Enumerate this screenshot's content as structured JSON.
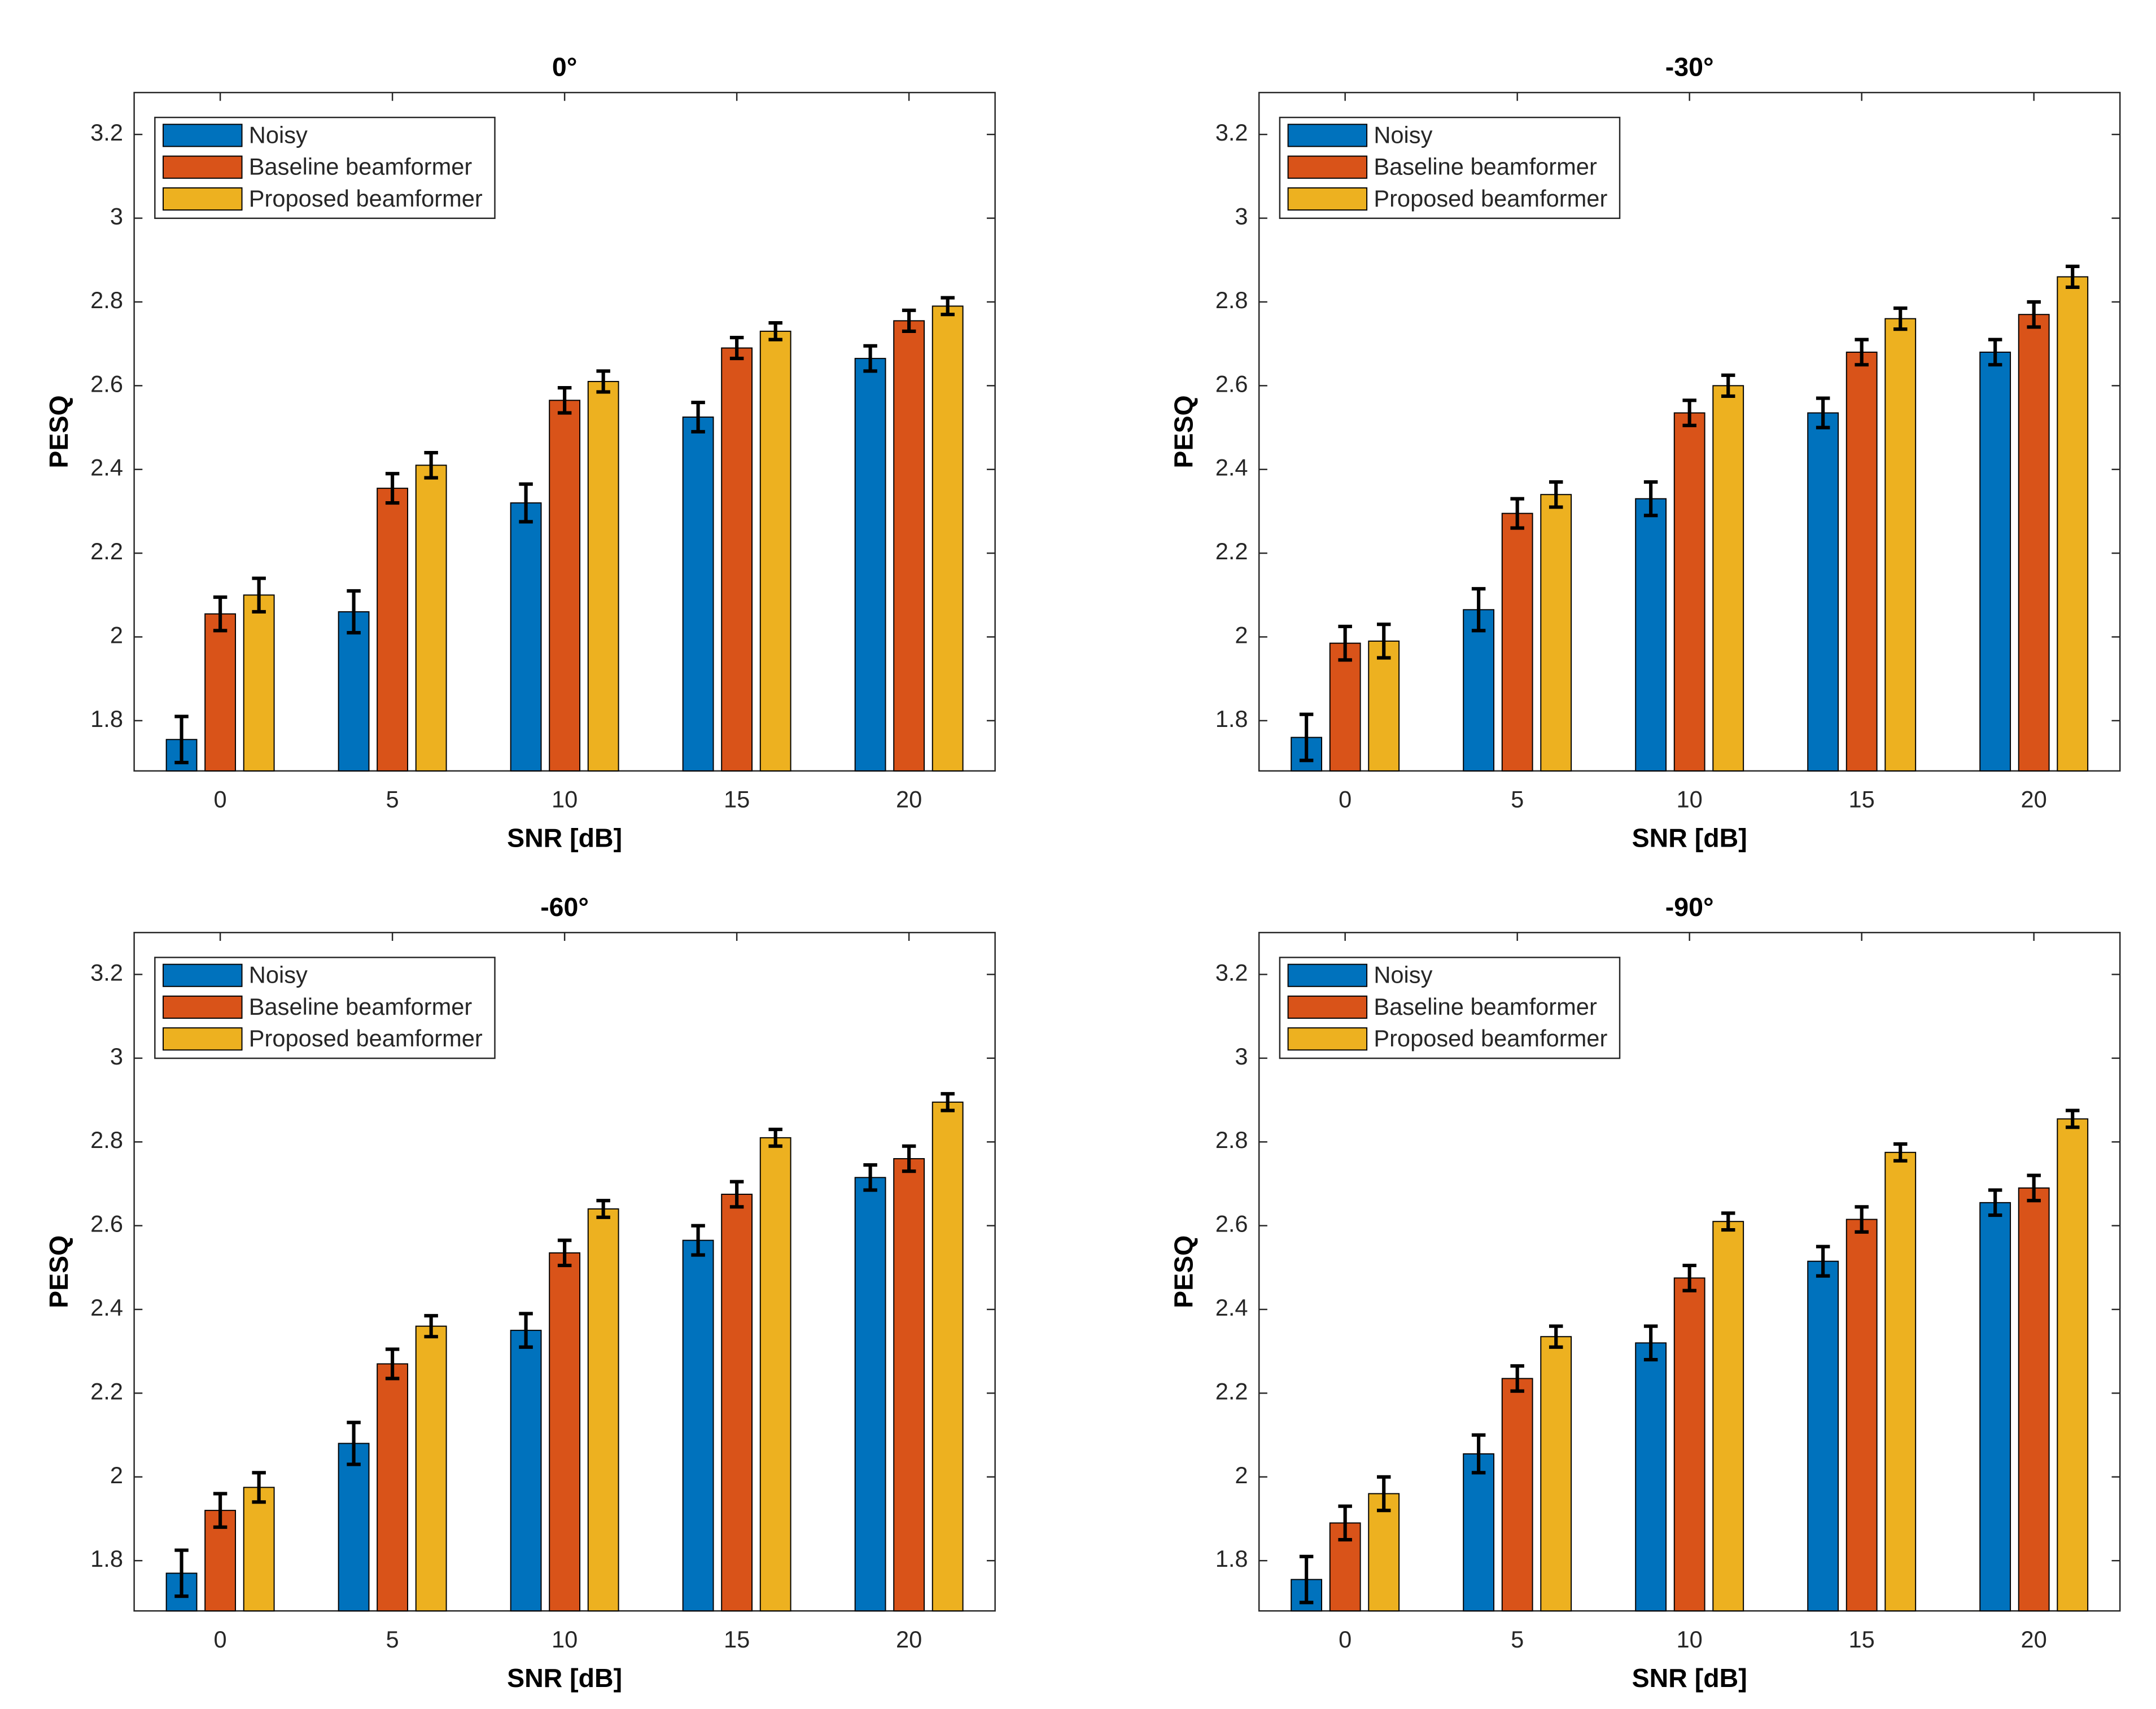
{
  "chart_data": [
    {
      "type": "bar",
      "title": "0°",
      "xlabel": "SNR [dB]",
      "ylabel": "PESQ",
      "legend": "upper left",
      "categories": [
        "0",
        "5",
        "10",
        "15",
        "20"
      ],
      "series": [
        {
          "name": "Noisy",
          "color": "#0072BD",
          "values": [
            1.755,
            2.06,
            2.32,
            2.525,
            2.665
          ],
          "errors": [
            0.055,
            0.05,
            0.045,
            0.035,
            0.03
          ]
        },
        {
          "name": "Baseline beamformer",
          "color": "#D95319",
          "values": [
            2.055,
            2.355,
            2.565,
            2.69,
            2.755
          ],
          "errors": [
            0.04,
            0.035,
            0.03,
            0.025,
            0.025
          ]
        },
        {
          "name": "Proposed beamformer",
          "color": "#EDB120",
          "values": [
            2.1,
            2.41,
            2.61,
            2.73,
            2.79
          ],
          "errors": [
            0.04,
            0.03,
            0.025,
            0.02,
            0.02
          ]
        }
      ],
      "ylim": [
        1.68,
        3.3
      ],
      "yticks": [
        1.8,
        2,
        2.2,
        2.4,
        2.6,
        2.8,
        3,
        3.2
      ]
    },
    {
      "type": "bar",
      "title": "-30°",
      "xlabel": "SNR [dB]",
      "ylabel": "PESQ",
      "legend": "upper left",
      "categories": [
        "0",
        "5",
        "10",
        "15",
        "20"
      ],
      "series": [
        {
          "name": "Noisy",
          "color": "#0072BD",
          "values": [
            1.76,
            2.065,
            2.33,
            2.535,
            2.68
          ],
          "errors": [
            0.055,
            0.05,
            0.04,
            0.035,
            0.03
          ]
        },
        {
          "name": "Baseline beamformer",
          "color": "#D95319",
          "values": [
            1.985,
            2.295,
            2.535,
            2.68,
            2.77
          ],
          "errors": [
            0.04,
            0.035,
            0.03,
            0.03,
            0.03
          ]
        },
        {
          "name": "Proposed beamformer",
          "color": "#EDB120",
          "values": [
            1.99,
            2.34,
            2.6,
            2.76,
            2.86
          ],
          "errors": [
            0.04,
            0.03,
            0.025,
            0.025,
            0.025
          ]
        }
      ],
      "ylim": [
        1.68,
        3.3
      ],
      "yticks": [
        1.8,
        2,
        2.2,
        2.4,
        2.6,
        2.8,
        3,
        3.2
      ]
    },
    {
      "type": "bar",
      "title": "-60°",
      "xlabel": "SNR [dB]",
      "ylabel": "PESQ",
      "legend": "upper left",
      "categories": [
        "0",
        "5",
        "10",
        "15",
        "20"
      ],
      "series": [
        {
          "name": "Noisy",
          "color": "#0072BD",
          "values": [
            1.77,
            2.08,
            2.35,
            2.565,
            2.715
          ],
          "errors": [
            0.055,
            0.05,
            0.04,
            0.035,
            0.03
          ]
        },
        {
          "name": "Baseline beamformer",
          "color": "#D95319",
          "values": [
            1.92,
            2.27,
            2.535,
            2.675,
            2.76
          ],
          "errors": [
            0.04,
            0.035,
            0.03,
            0.03,
            0.03
          ]
        },
        {
          "name": "Proposed beamformer",
          "color": "#EDB120",
          "values": [
            1.975,
            2.36,
            2.64,
            2.81,
            2.895
          ],
          "errors": [
            0.035,
            0.025,
            0.02,
            0.02,
            0.02
          ]
        }
      ],
      "ylim": [
        1.68,
        3.3
      ],
      "yticks": [
        1.8,
        2,
        2.2,
        2.4,
        2.6,
        2.8,
        3,
        3.2
      ]
    },
    {
      "type": "bar",
      "title": "-90°",
      "xlabel": "SNR [dB]",
      "ylabel": "PESQ",
      "legend": "upper left",
      "categories": [
        "0",
        "5",
        "10",
        "15",
        "20"
      ],
      "series": [
        {
          "name": "Noisy",
          "color": "#0072BD",
          "values": [
            1.755,
            2.055,
            2.32,
            2.515,
            2.655
          ],
          "errors": [
            0.055,
            0.045,
            0.04,
            0.035,
            0.03
          ]
        },
        {
          "name": "Baseline beamformer",
          "color": "#D95319",
          "values": [
            1.89,
            2.235,
            2.475,
            2.615,
            2.69
          ],
          "errors": [
            0.04,
            0.03,
            0.03,
            0.03,
            0.03
          ]
        },
        {
          "name": "Proposed beamformer",
          "color": "#EDB120",
          "values": [
            1.96,
            2.335,
            2.61,
            2.775,
            2.855
          ],
          "errors": [
            0.04,
            0.025,
            0.02,
            0.02,
            0.02
          ]
        }
      ],
      "ylim": [
        1.68,
        3.3
      ],
      "yticks": [
        1.8,
        2,
        2.2,
        2.4,
        2.6,
        2.8,
        3,
        3.2
      ]
    }
  ]
}
